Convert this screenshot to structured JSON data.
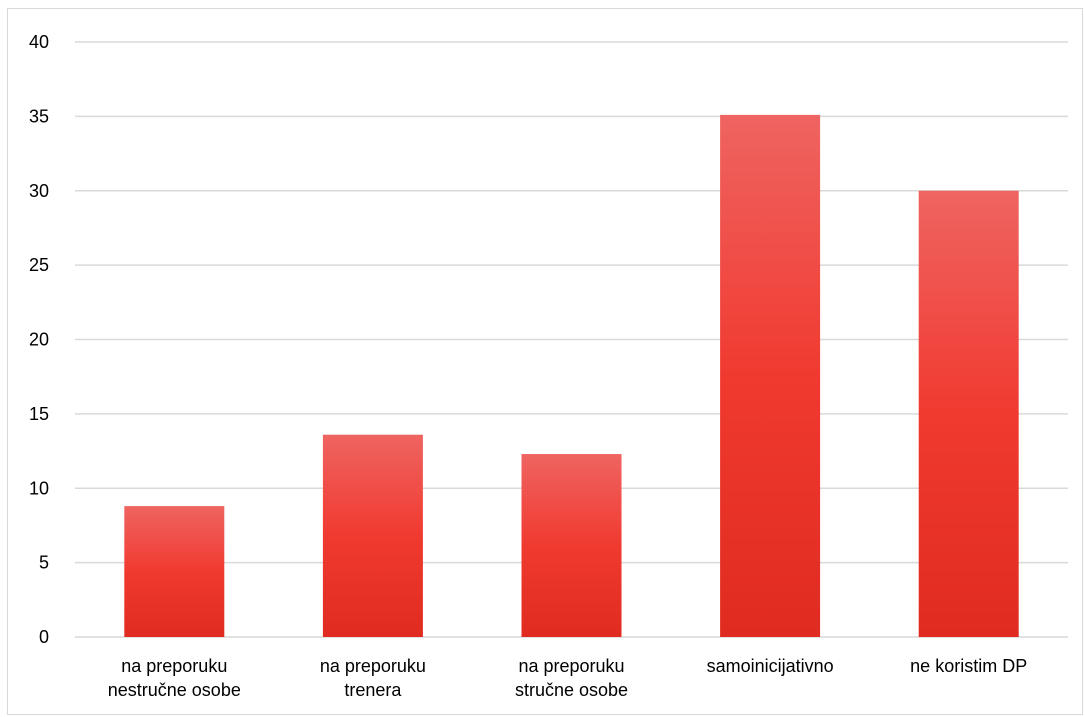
{
  "chart_data": {
    "type": "bar",
    "title": "",
    "xlabel": "",
    "ylabel": "",
    "categories": [
      [
        "na preporuku",
        "nestručne osobe"
      ],
      [
        "na preporuku",
        "trenera"
      ],
      [
        "na preporuku",
        "stručne osobe"
      ],
      [
        "samoinicijativno"
      ],
      [
        "ne koristim DP"
      ]
    ],
    "values": [
      8.8,
      13.6,
      12.3,
      35.1,
      30.0
    ],
    "ylim": [
      0,
      40
    ],
    "yticks": [
      "0",
      "5",
      "10",
      "15",
      "20",
      "25",
      "30",
      "35",
      "40"
    ],
    "grid": true,
    "legend": "none",
    "bar_color_top": "#ef6461",
    "bar_color_bottom": "#e02b20",
    "grid_color": "#d9d9d9"
  }
}
